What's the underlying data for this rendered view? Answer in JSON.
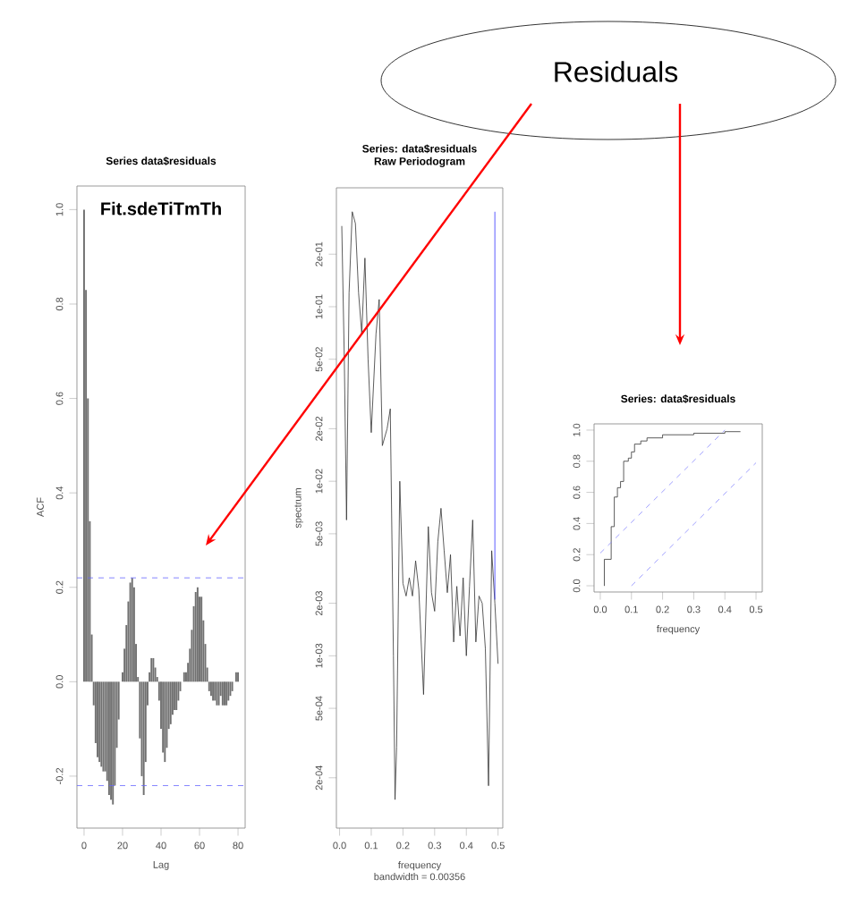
{
  "chart_data": [
    {
      "type": "bar",
      "title": "Series  data$residuals",
      "annotations": [
        "Fit.sdeTiTmTh",
        "Residuals"
      ],
      "xlabel": "Lag",
      "ylabel": "ACF",
      "color": "#707070",
      "x": [
        0,
        1,
        2,
        3,
        4,
        5,
        6,
        7,
        8,
        9,
        10,
        11,
        12,
        13,
        14,
        15,
        16,
        17,
        18,
        19,
        20,
        21,
        22,
        23,
        24,
        25,
        26,
        27,
        28,
        29,
        30,
        31,
        32,
        33,
        34,
        35,
        36,
        37,
        38,
        39,
        40,
        41,
        42,
        43,
        44,
        45,
        46,
        47,
        48,
        49,
        50,
        51,
        52,
        53,
        54,
        55,
        56,
        57,
        58,
        59,
        60,
        61,
        62,
        63,
        64,
        65,
        66,
        67,
        68,
        69,
        70,
        71,
        72,
        73,
        74,
        75,
        76,
        77,
        78,
        79,
        80
      ],
      "values": [
        1.0,
        0.83,
        0.6,
        0.34,
        0.1,
        -0.05,
        -0.13,
        -0.16,
        -0.17,
        -0.18,
        -0.19,
        -0.19,
        -0.21,
        -0.24,
        -0.25,
        -0.26,
        -0.22,
        -0.14,
        -0.08,
        0.0,
        0.02,
        0.07,
        0.12,
        0.17,
        0.21,
        0.22,
        0.2,
        0.08,
        0.01,
        -0.12,
        -0.2,
        -0.24,
        -0.17,
        -0.05,
        0.02,
        0.05,
        0.05,
        0.03,
        0.01,
        -0.04,
        -0.1,
        -0.15,
        -0.17,
        -0.14,
        -0.1,
        -0.09,
        -0.07,
        -0.06,
        -0.06,
        -0.04,
        -0.02,
        0.0,
        0.02,
        0.02,
        0.04,
        0.07,
        0.11,
        0.16,
        0.19,
        0.2,
        0.18,
        0.18,
        0.13,
        0.08,
        0.03,
        -0.02,
        -0.03,
        -0.04,
        -0.04,
        -0.05,
        -0.05,
        -0.03,
        -0.05,
        -0.05,
        -0.05,
        -0.04,
        -0.03,
        -0.02,
        0.0,
        0.02,
        0.02
      ],
      "xlim": [
        -3.7,
        83.7
      ],
      "ylim": [
        -0.31,
        1.05
      ],
      "xticks": [
        0,
        20,
        40,
        60,
        80
      ],
      "yticks": [
        {
          "value": -0.2,
          "label": "-0.2"
        },
        {
          "value": 0,
          "label": "0.0"
        },
        {
          "value": 0.2,
          "label": "0.2"
        },
        {
          "value": 0.4,
          "label": "0.4"
        },
        {
          "value": 0.6,
          "label": "0.6"
        },
        {
          "value": 0.8,
          "label": "0.8"
        },
        {
          "value": 1,
          "label": "1.0"
        }
      ],
      "ref_lines": [
        {
          "axis": "y",
          "value": 0.22,
          "color": "#6666ff",
          "line_style": "dashed"
        },
        {
          "axis": "y",
          "value": -0.22,
          "color": "#6666ff",
          "line_style": "dashed"
        }
      ]
    },
    {
      "type": "line",
      "title": "Series: data$residuals",
      "subtitle": "Raw Periodogram",
      "xlabel": "frequency",
      "ylabel": "spectrum",
      "annotations": [
        "bandwidth = 0.00356"
      ],
      "log": "y",
      "series": [
        {
          "color": "#333333",
          "x": [
            0.007,
            0.015,
            0.022,
            0.03,
            0.04,
            0.05,
            0.06,
            0.07,
            0.08,
            0.09,
            0.1,
            0.115,
            0.125,
            0.135,
            0.15,
            0.16,
            0.17,
            0.175,
            0.18,
            0.19,
            0.2,
            0.21,
            0.22,
            0.23,
            0.24,
            0.25,
            0.265,
            0.28,
            0.29,
            0.3,
            0.31,
            0.32,
            0.33,
            0.34,
            0.35,
            0.36,
            0.37,
            0.38,
            0.39,
            0.4,
            0.41,
            0.42,
            0.43,
            0.44,
            0.45,
            0.46,
            0.47,
            0.48,
            0.49,
            0.5
          ],
          "values": [
            0.29,
            0.05,
            0.006,
            0.12,
            0.35,
            0.3,
            0.12,
            0.07,
            0.19,
            0.05,
            0.019,
            0.07,
            0.11,
            0.016,
            0.02,
            0.026,
            0.001,
            0.00015,
            0.0003,
            0.01,
            0.0026,
            0.0022,
            0.0028,
            0.0022,
            0.0035,
            0.0024,
            0.0006,
            0.0055,
            0.0023,
            0.0018,
            0.0045,
            0.007,
            0.004,
            0.0023,
            0.0038,
            0.0012,
            0.0025,
            0.0013,
            0.0028,
            0.001,
            0.0025,
            0.006,
            0.0012,
            0.0022,
            0.002,
            0.0011,
            0.00018,
            0.004,
            0.002,
            0.0009
          ]
        },
        {
          "color": "#3333ff",
          "x": [
            0.49,
            0.49
          ],
          "values": [
            0.0021,
            0.35
          ]
        }
      ],
      "xlim": [
        -0.01,
        0.515
      ],
      "ylim": [
        0.000103,
        0.48
      ],
      "xticks": [
        {
          "value": 0,
          "label": "0.0"
        },
        {
          "value": 0.1,
          "label": "0.1"
        },
        {
          "value": 0.2,
          "label": "0.2"
        },
        {
          "value": 0.3,
          "label": "0.3"
        },
        {
          "value": 0.4,
          "label": "0.4"
        },
        {
          "value": 0.5,
          "label": "0.5"
        }
      ],
      "yticks": [
        {
          "value": 0.0002,
          "label": "2e-04"
        },
        {
          "value": 0.0005,
          "label": "5e-04"
        },
        {
          "value": 0.001,
          "label": "1e-03"
        },
        {
          "value": 0.002,
          "label": "2e-03"
        },
        {
          "value": 0.005,
          "label": "5e-03"
        },
        {
          "value": 0.01,
          "label": "1e-02"
        },
        {
          "value": 0.02,
          "label": "2e-02"
        },
        {
          "value": 0.05,
          "label": "5e-02"
        },
        {
          "value": 0.1,
          "label": "1e-01"
        },
        {
          "value": 0.2,
          "label": "2e-01"
        }
      ]
    },
    {
      "type": "step",
      "title": "Series:  data$residuals",
      "xlabel": "frequency",
      "series": [
        {
          "type": "step",
          "color": "#333333",
          "x": [
            0.012,
            0.013,
            0.035,
            0.045,
            0.055,
            0.065,
            0.075,
            0.09,
            0.1,
            0.11,
            0.13,
            0.15,
            0.2,
            0.3,
            0.4,
            0.45
          ],
          "values": [
            0.0,
            0.17,
            0.38,
            0.57,
            0.63,
            0.67,
            0.8,
            0.82,
            0.86,
            0.91,
            0.93,
            0.95,
            0.97,
            0.98,
            0.99,
            0.99
          ]
        },
        {
          "type": "line",
          "line_style": "dashed",
          "color": "#8888ff",
          "x": [
            0,
            0.4
          ],
          "values": [
            0.21,
            1.0
          ]
        },
        {
          "type": "line",
          "line_style": "dashed",
          "color": "#8888ff",
          "x": [
            0.1,
            0.5
          ],
          "values": [
            0.0,
            0.79
          ]
        }
      ],
      "xlim": [
        -0.02,
        0.52
      ],
      "ylim": [
        -0.04,
        1.04
      ],
      "xticks": [
        {
          "value": 0,
          "label": "0.0"
        },
        {
          "value": 0.1,
          "label": "0.1"
        },
        {
          "value": 0.2,
          "label": "0.2"
        },
        {
          "value": 0.3,
          "label": "0.3"
        },
        {
          "value": 0.4,
          "label": "0.4"
        },
        {
          "value": 0.5,
          "label": "0.5"
        }
      ],
      "yticks": [
        {
          "value": 0,
          "label": "0.0"
        },
        {
          "value": 0.2,
          "label": "0.2"
        },
        {
          "value": 0.4,
          "label": "0.4"
        },
        {
          "value": 0.6,
          "label": "0.6"
        },
        {
          "value": 0.8,
          "label": "0.8"
        },
        {
          "value": 1,
          "label": "1.0"
        }
      ]
    }
  ]
}
